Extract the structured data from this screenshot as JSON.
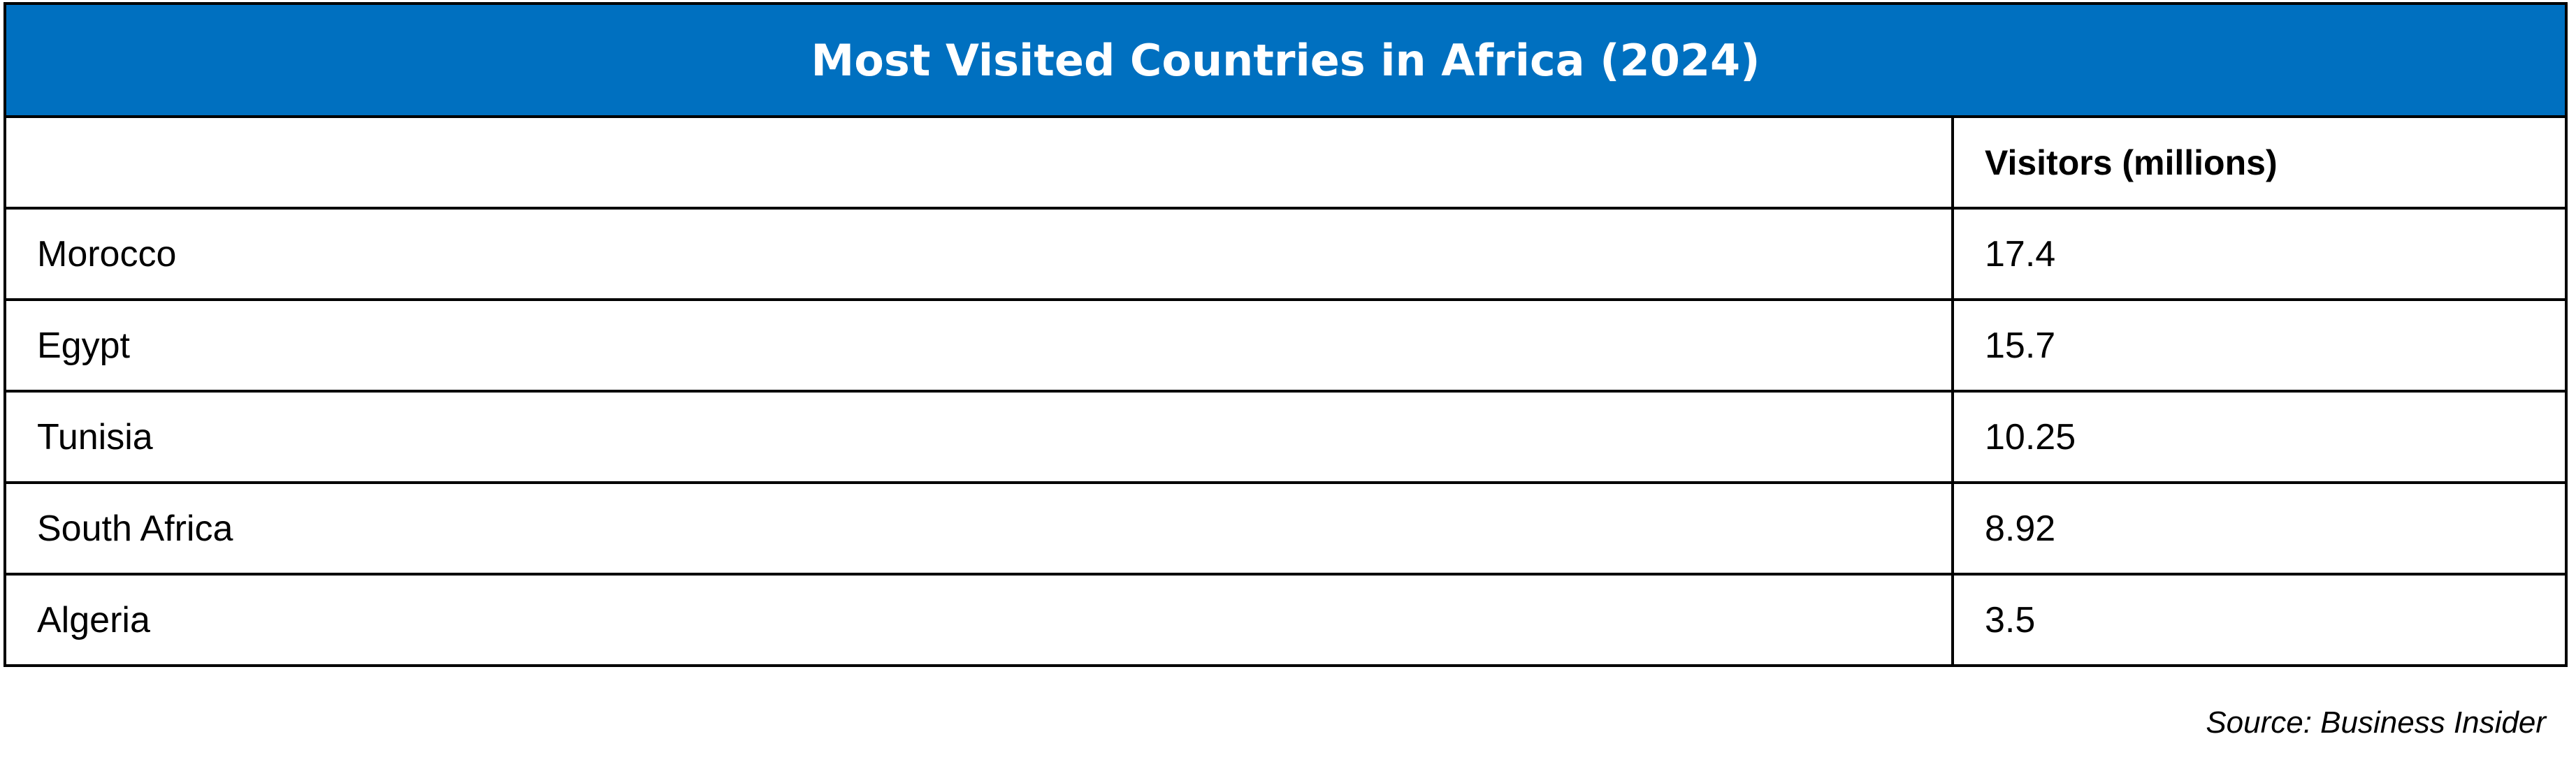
{
  "header": {
    "title": "Most Visited Countries in Africa (2024)"
  },
  "table": {
    "column_header": "Visitors (millions)",
    "rows": [
      [
        "Morocco",
        17.4
      ],
      [
        "Egypt",
        15.7
      ],
      [
        "Tunisia",
        10.25
      ],
      [
        "South Africa",
        8.92
      ],
      [
        "Algeria",
        3.5
      ]
    ]
  },
  "footer": {
    "source": "Source: Business Insider"
  }
}
